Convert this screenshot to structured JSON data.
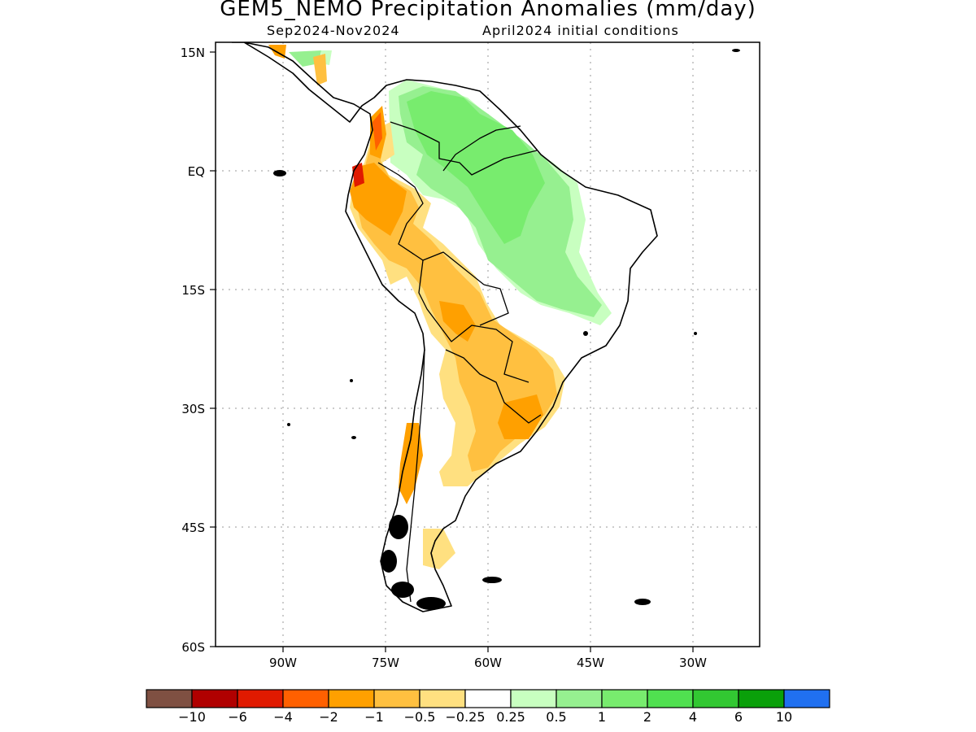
{
  "title": "GEM5_NEMO Precipitation Anomalies (mm/day)",
  "subtitle_period": "Sep2024-Nov2024",
  "subtitle_init": "April2024 initial conditions",
  "y_ticks": [
    "15N",
    "EQ",
    "15S",
    "30S",
    "45S",
    "60S"
  ],
  "x_ticks": [
    "90W",
    "75W",
    "60W",
    "45W",
    "30W"
  ],
  "colorbar": {
    "colors": [
      "#7f5042",
      "#b00000",
      "#e01a00",
      "#ff6000",
      "#ffa000",
      "#ffc040",
      "#ffe080",
      "#ffffff",
      "#c8ffc0",
      "#96f090",
      "#78ec6e",
      "#50e050",
      "#32c832",
      "#0aa00a",
      "#2070f0"
    ],
    "labels": [
      "-10",
      "-6",
      "-4",
      "-2",
      "-1",
      "-0.5",
      "-0.25",
      "0.25",
      "0.5",
      "1",
      "2",
      "4",
      "6",
      "10"
    ]
  },
  "map_extent": {
    "lon_min": -100,
    "lon_max": -20,
    "lat_min": -60,
    "lat_max": 15
  }
}
